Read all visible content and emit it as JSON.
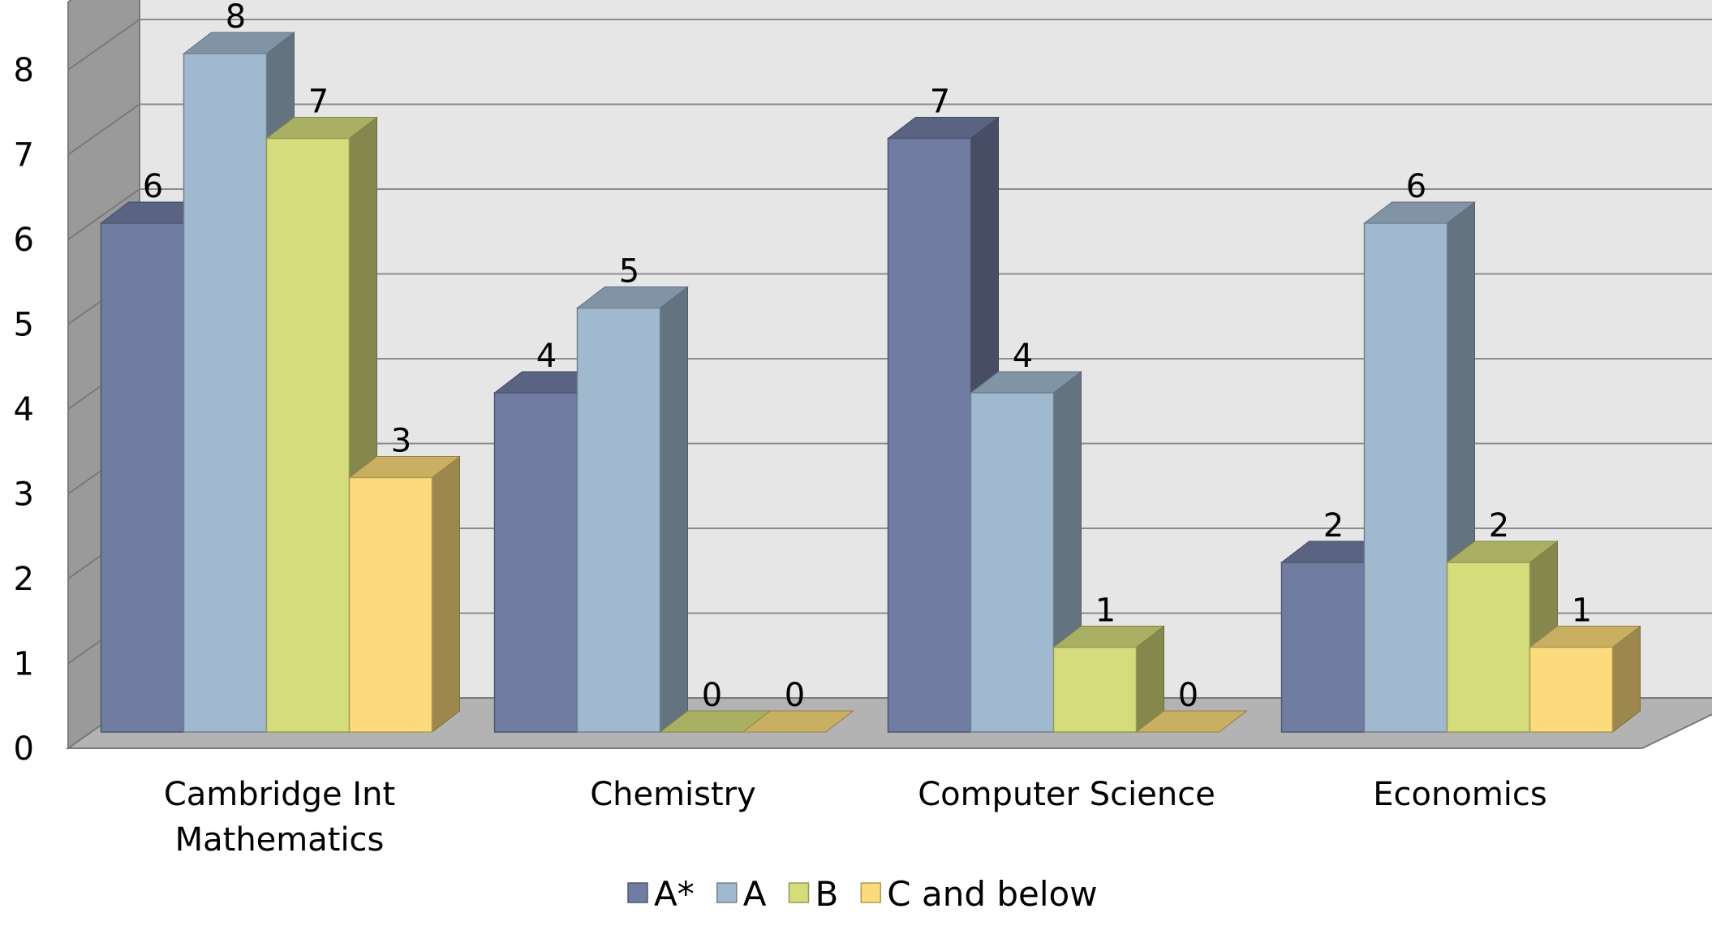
{
  "chart_data": {
    "type": "bar",
    "style": "3d-clustered-column",
    "categories": [
      [
        "Cambridge Int",
        "Mathematics"
      ],
      [
        "Chemistry"
      ],
      [
        "Computer Science"
      ],
      [
        "Economics"
      ]
    ],
    "series": [
      {
        "name": "A*",
        "values": [
          6,
          4,
          7,
          2
        ],
        "color": "#717ca2"
      },
      {
        "name": "A",
        "values": [
          8,
          5,
          4,
          6
        ],
        "color": "#a1b9cf"
      },
      {
        "name": "B",
        "values": [
          7,
          0,
          1,
          2
        ],
        "color": "#d5dc7c"
      },
      {
        "name": "C and below",
        "values": [
          3,
          0,
          0,
          1
        ],
        "color": "#fbdb7b"
      }
    ],
    "ylim": [
      0,
      8
    ],
    "yticks": [
      0,
      1,
      2,
      3,
      4,
      5,
      6,
      7,
      8
    ],
    "grid": true,
    "legend_position": "bottom",
    "wall_color": "#e6e6e6",
    "floor_color": "#b3b3b3",
    "side_wall_color": "#9a9a9a"
  }
}
